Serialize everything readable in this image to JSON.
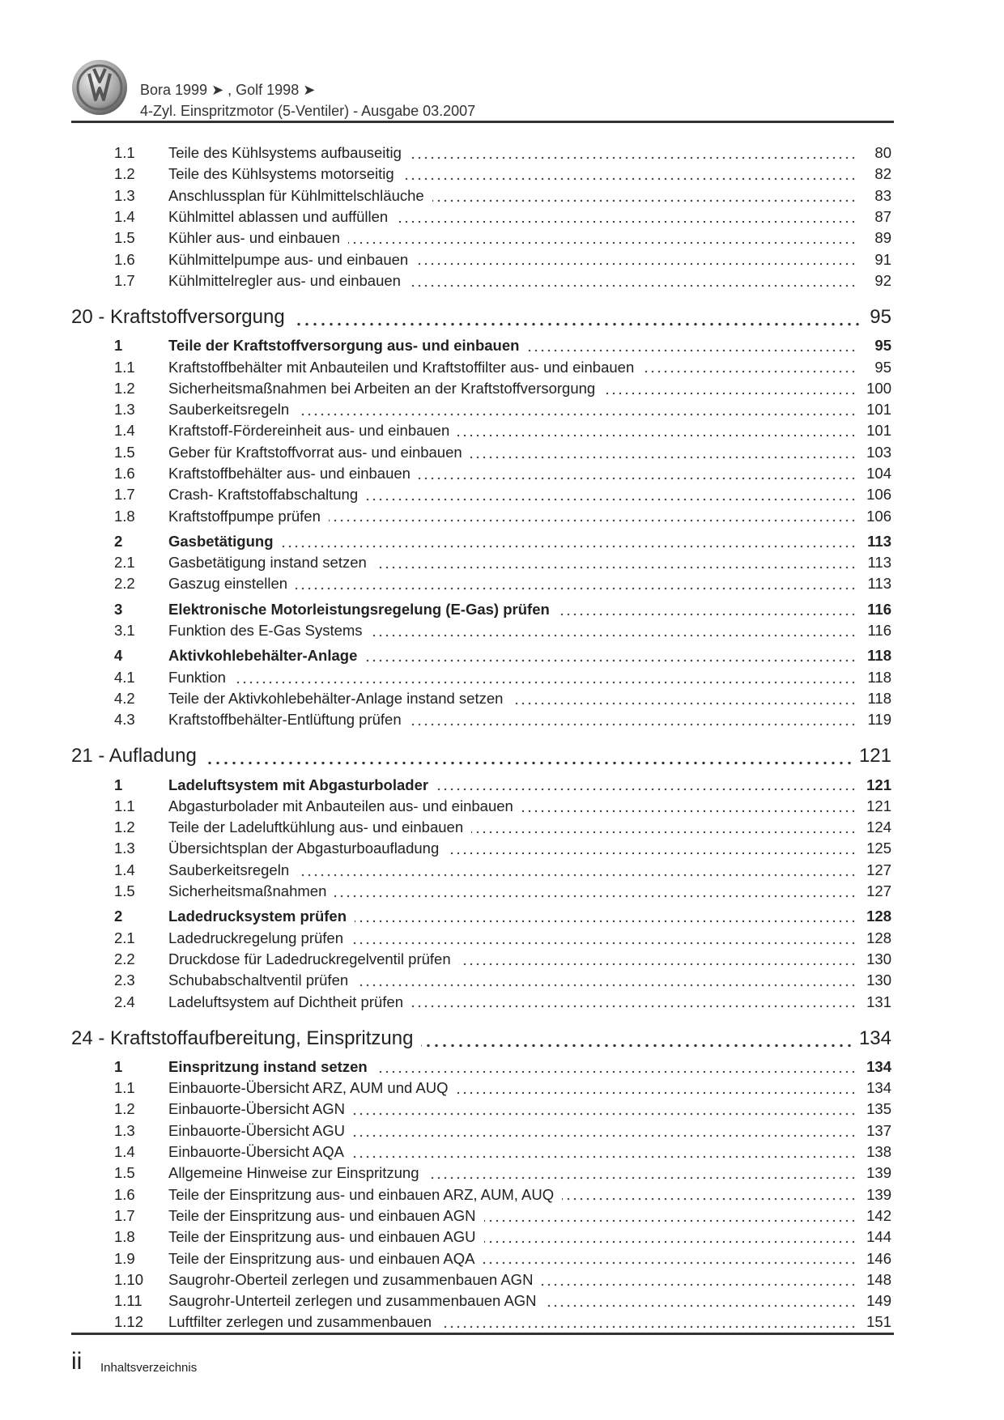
{
  "header": {
    "line1": "Bora 1999 ➤ , Golf 1998 ➤",
    "line2": "4-Zyl. Einspritzmotor (5-Ventiler) - Ausgabe 03.2007",
    "logo": "VW"
  },
  "toc": [
    {
      "type": "sub",
      "num": "1.1",
      "title": "Teile des Kühlsystems aufbauseitig",
      "page": "80"
    },
    {
      "type": "sub",
      "num": "1.2",
      "title": "Teile des Kühlsystems motorseitig",
      "page": "82"
    },
    {
      "type": "sub",
      "num": "1.3",
      "title": "Anschlussplan für Kühlmittelschläuche",
      "page": "83"
    },
    {
      "type": "sub",
      "num": "1.4",
      "title": "Kühlmittel ablassen und auffüllen",
      "page": "87"
    },
    {
      "type": "sub",
      "num": "1.5",
      "title": "Kühler aus- und einbauen",
      "page": "89"
    },
    {
      "type": "sub",
      "num": "1.6",
      "title": "Kühlmittelpumpe aus- und einbauen",
      "page": "91"
    },
    {
      "type": "sub",
      "num": "1.7",
      "title": "Kühlmittelregler aus- und einbauen",
      "page": "92"
    },
    {
      "type": "chapter",
      "num": "",
      "title": "20 - Kraftstoffversorgung",
      "page": "95"
    },
    {
      "type": "main",
      "num": "1",
      "title": "Teile der Kraftstoffversorgung aus- und einbauen",
      "page": "95"
    },
    {
      "type": "sub",
      "num": "1.1",
      "title": "Kraftstoffbehälter mit Anbauteilen und Kraftstoffilter aus- und einbauen",
      "page": "95"
    },
    {
      "type": "sub",
      "num": "1.2",
      "title": "Sicherheitsmaßnahmen bei Arbeiten an der Kraftstoffversorgung",
      "page": "100"
    },
    {
      "type": "sub",
      "num": "1.3",
      "title": "Sauberkeitsregeln",
      "page": "101"
    },
    {
      "type": "sub",
      "num": "1.4",
      "title": "Kraftstoff-Fördereinheit aus- und einbauen",
      "page": "101"
    },
    {
      "type": "sub",
      "num": "1.5",
      "title": "Geber für Kraftstoffvorrat aus- und einbauen",
      "page": "103"
    },
    {
      "type": "sub",
      "num": "1.6",
      "title": "Kraftstoffbehälter aus- und einbauen",
      "page": "104"
    },
    {
      "type": "sub",
      "num": "1.7",
      "title": "Crash- Kraftstoffabschaltung",
      "page": "106"
    },
    {
      "type": "sub",
      "num": "1.8",
      "title": "Kraftstoffpumpe prüfen",
      "page": "106"
    },
    {
      "type": "main",
      "num": "2",
      "title": "Gasbetätigung",
      "page": "113"
    },
    {
      "type": "sub",
      "num": "2.1",
      "title": "Gasbetätigung instand setzen",
      "page": "113"
    },
    {
      "type": "sub",
      "num": "2.2",
      "title": "Gaszug einstellen",
      "page": "113"
    },
    {
      "type": "main",
      "num": "3",
      "title": "Elektronische Motorleistungsregelung (E-Gas) prüfen",
      "page": "116"
    },
    {
      "type": "sub",
      "num": "3.1",
      "title": "Funktion des E-Gas Systems",
      "page": "116"
    },
    {
      "type": "main",
      "num": "4",
      "title": "Aktivkohlebehälter-Anlage",
      "page": "118"
    },
    {
      "type": "sub",
      "num": "4.1",
      "title": "Funktion",
      "page": "118"
    },
    {
      "type": "sub",
      "num": "4.2",
      "title": "Teile der Aktivkohlebehälter-Anlage instand setzen",
      "page": "118"
    },
    {
      "type": "sub",
      "num": "4.3",
      "title": "Kraftstoffbehälter-Entlüftung prüfen",
      "page": "119"
    },
    {
      "type": "chapter",
      "num": "",
      "title": "21 - Aufladung",
      "page": "121"
    },
    {
      "type": "main",
      "num": "1",
      "title": "Ladeluftsystem mit Abgasturbolader",
      "page": "121"
    },
    {
      "type": "sub",
      "num": "1.1",
      "title": "Abgasturbolader mit Anbauteilen aus- und einbauen",
      "page": "121"
    },
    {
      "type": "sub",
      "num": "1.2",
      "title": "Teile der Ladeluftkühlung aus- und einbauen",
      "page": "124"
    },
    {
      "type": "sub",
      "num": "1.3",
      "title": "Übersichtsplan der Abgasturboaufladung",
      "page": "125"
    },
    {
      "type": "sub",
      "num": "1.4",
      "title": "Sauberkeitsregeln",
      "page": "127"
    },
    {
      "type": "sub",
      "num": "1.5",
      "title": "Sicherheitsmaßnahmen",
      "page": "127"
    },
    {
      "type": "main",
      "num": "2",
      "title": "Ladedrucksystem prüfen",
      "page": "128"
    },
    {
      "type": "sub",
      "num": "2.1",
      "title": "Ladedruckregelung prüfen",
      "page": "128"
    },
    {
      "type": "sub",
      "num": "2.2",
      "title": "Druckdose für Ladedruckregelventil prüfen",
      "page": "130"
    },
    {
      "type": "sub",
      "num": "2.3",
      "title": "Schubabschaltventil prüfen",
      "page": "130"
    },
    {
      "type": "sub",
      "num": "2.4",
      "title": "Ladeluftsystem auf Dichtheit prüfen",
      "page": "131"
    },
    {
      "type": "chapter",
      "num": "",
      "title": "24 - Kraftstoffaufbereitung, Einspritzung",
      "page": "134"
    },
    {
      "type": "main",
      "num": "1",
      "title": "Einspritzung instand setzen",
      "page": "134"
    },
    {
      "type": "sub",
      "num": "1.1",
      "title": "Einbauorte-Übersicht ARZ, AUM und AUQ",
      "page": "134"
    },
    {
      "type": "sub",
      "num": "1.2",
      "title": "Einbauorte-Übersicht AGN",
      "page": "135"
    },
    {
      "type": "sub",
      "num": "1.3",
      "title": "Einbauorte-Übersicht AGU",
      "page": "137"
    },
    {
      "type": "sub",
      "num": "1.4",
      "title": "Einbauorte-Übersicht AQA",
      "page": "138"
    },
    {
      "type": "sub",
      "num": "1.5",
      "title": "Allgemeine Hinweise zur Einspritzung",
      "page": "139"
    },
    {
      "type": "sub",
      "num": "1.6",
      "title": "Teile der Einspritzung aus- und einbauen ARZ, AUM, AUQ",
      "page": "139"
    },
    {
      "type": "sub",
      "num": "1.7",
      "title": "Teile der Einspritzung aus- und einbauen AGN",
      "page": "142"
    },
    {
      "type": "sub",
      "num": "1.8",
      "title": "Teile der Einspritzung aus- und einbauen AGU",
      "page": "144"
    },
    {
      "type": "sub",
      "num": "1.9",
      "title": "Teile der Einspritzung aus- und einbauen AQA",
      "page": "146"
    },
    {
      "type": "sub",
      "num": "1.10",
      "title": "Saugrohr-Oberteil zerlegen und zusammenbauen AGN",
      "page": "148"
    },
    {
      "type": "sub",
      "num": "1.11",
      "title": "Saugrohr-Unterteil zerlegen und zusammenbauen AGN",
      "page": "149"
    },
    {
      "type": "sub",
      "num": "1.12",
      "title": "Luftfilter zerlegen und zusammenbauen",
      "page": "151"
    }
  ],
  "footer": {
    "page_number": "ii",
    "section": "Inhaltsverzeichnis"
  }
}
